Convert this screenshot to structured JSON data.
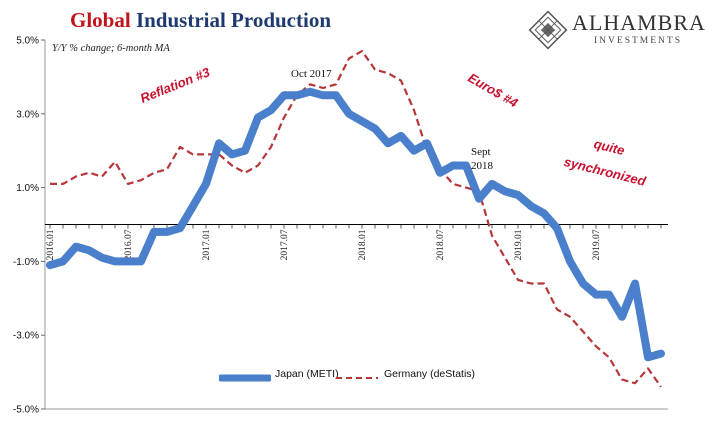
{
  "title": {
    "part1": "Global",
    "part2": "Industrial Production"
  },
  "subtitle": "Y/Y % change; 6-month MA",
  "logo": {
    "name": "ALHAMBRA",
    "subtitle": "INVESTMENTS"
  },
  "annotations": {
    "oct2017": "Oct 2017",
    "reflation": "Reflation #3",
    "euro": "Euro$ #4",
    "sept_line1": "Sept",
    "sept_line2": "2018",
    "quite_line1": "quite",
    "quite_line2": "synchronized"
  },
  "colors": {
    "japan": "#4a7fcb",
    "germany": "#b5373a",
    "title_red": "#c0141a",
    "title_blue": "#1f3a6e"
  },
  "chart_data": {
    "type": "line",
    "x": [
      "2016.01",
      "2016.02",
      "2016.03",
      "2016.04",
      "2016.05",
      "2016.06",
      "2016.07",
      "2016.08",
      "2016.09",
      "2016.10",
      "2016.11",
      "2016.12",
      "2017.01",
      "2017.02",
      "2017.03",
      "2017.04",
      "2017.05",
      "2017.06",
      "2017.07",
      "2017.08",
      "2017.09",
      "2017.10",
      "2017.11",
      "2017.12",
      "2018.01",
      "2018.02",
      "2018.03",
      "2018.04",
      "2018.05",
      "2018.06",
      "2018.07",
      "2018.08",
      "2018.09",
      "2018.10",
      "2018.11",
      "2018.12",
      "2019.01",
      "2019.02",
      "2019.03",
      "2019.04",
      "2019.05",
      "2019.06",
      "2019.07",
      "2019.08",
      "2019.09",
      "2019.10",
      "2019.11",
      "2019.12"
    ],
    "tick_labels": [
      "2016.01",
      "2016.07",
      "2017.01",
      "2017.07",
      "2018.01",
      "2018.07",
      "2019.01",
      "2019.07"
    ],
    "tick_indices": [
      0,
      6,
      12,
      18,
      24,
      30,
      36,
      42
    ],
    "ylim": [
      -5,
      5
    ],
    "yticks": [
      5,
      3,
      1,
      -1,
      -3,
      -5
    ],
    "ytick_labels": [
      "5.0%",
      "3.0%",
      "1.0%",
      "-1.0%",
      "-3.0%",
      "-5.0%"
    ],
    "series": [
      {
        "name": "Japan (METI)",
        "style": "solid",
        "values": [
          -1.1,
          -1.0,
          -0.6,
          -0.7,
          -0.9,
          -1.0,
          -1.0,
          -1.0,
          -0.2,
          -0.2,
          -0.1,
          0.5,
          1.1,
          2.2,
          1.9,
          2.0,
          2.9,
          3.1,
          3.5,
          3.5,
          3.6,
          3.5,
          3.5,
          3.0,
          2.8,
          2.6,
          2.2,
          2.4,
          2.0,
          2.2,
          1.4,
          1.6,
          1.6,
          0.7,
          1.1,
          0.9,
          0.8,
          0.5,
          0.3,
          -0.1,
          -1.0,
          -1.6,
          -1.9,
          -1.9,
          -2.5,
          -1.6,
          -3.6,
          -3.5
        ]
      },
      {
        "name": "Germany (deStatis)",
        "style": "dashed",
        "values": [
          1.1,
          1.1,
          1.3,
          1.4,
          1.3,
          1.7,
          1.1,
          1.2,
          1.4,
          1.5,
          2.1,
          1.9,
          1.9,
          1.9,
          1.6,
          1.4,
          1.6,
          2.1,
          2.9,
          3.5,
          3.8,
          3.7,
          3.8,
          4.5,
          4.7,
          4.2,
          4.1,
          3.9,
          3.1,
          2.0,
          1.5,
          1.1,
          1.0,
          0.9,
          -0.3,
          -0.9,
          -1.5,
          -1.6,
          -1.6,
          -2.3,
          -2.5,
          -2.9,
          -3.3,
          -3.6,
          -4.2,
          -4.3,
          -3.9,
          -4.4
        ]
      }
    ]
  }
}
